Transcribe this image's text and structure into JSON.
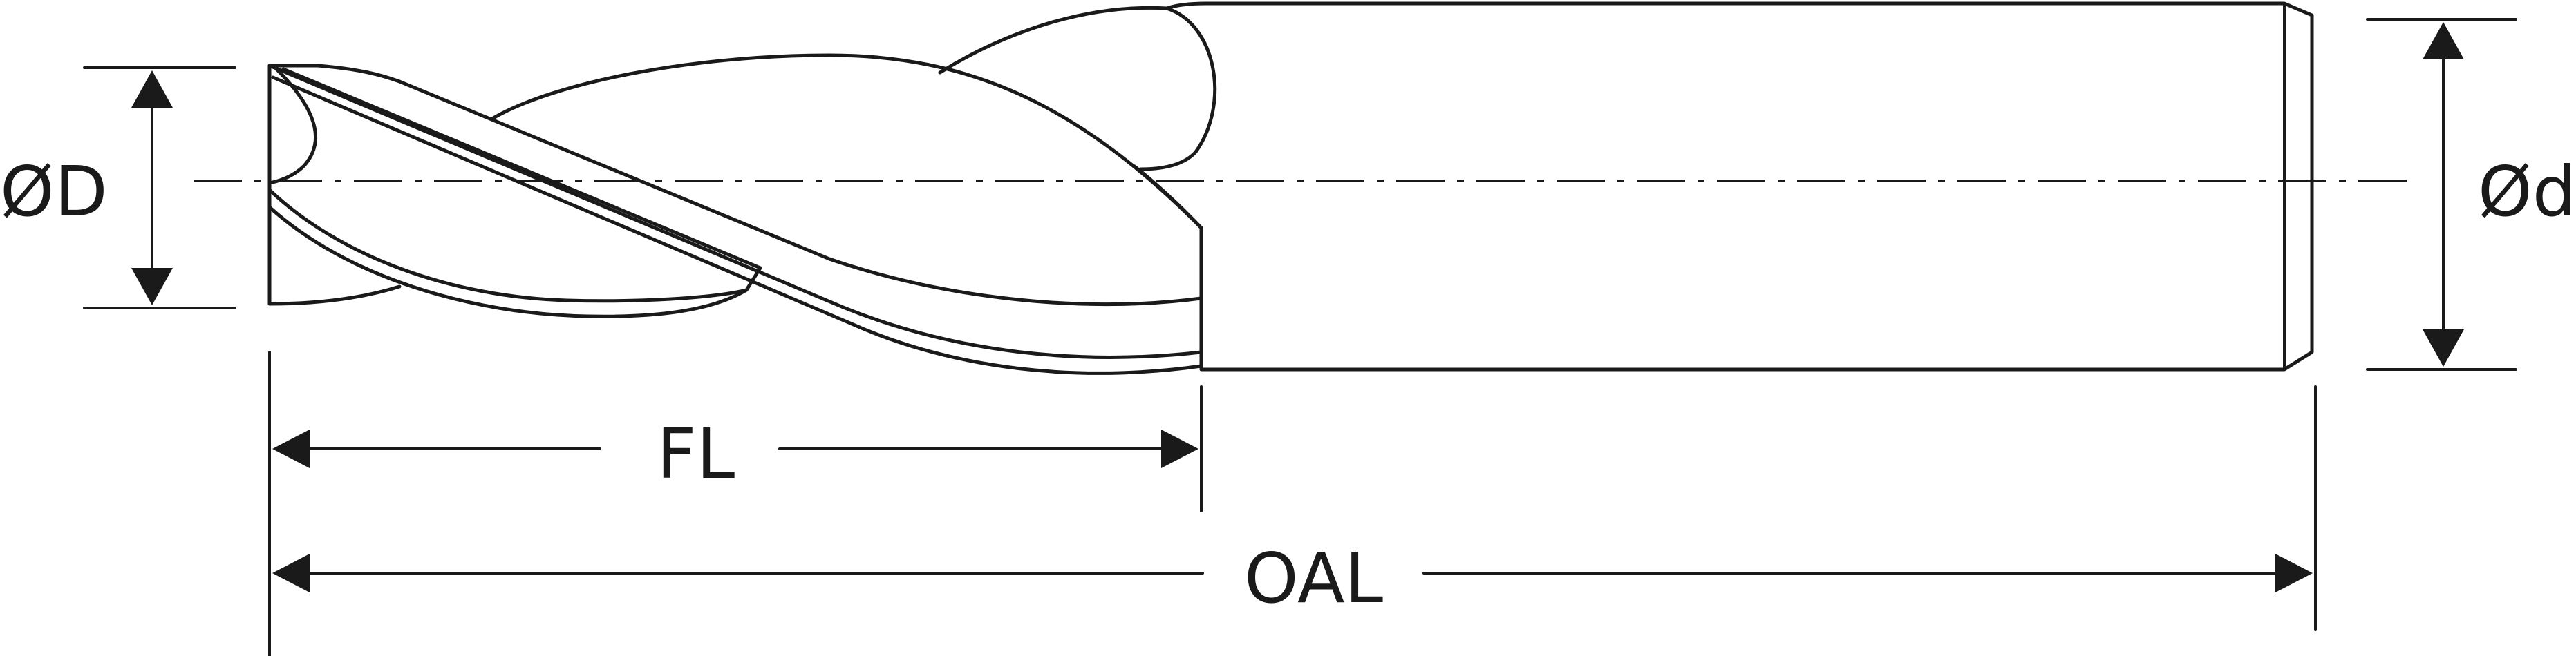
{
  "labels": {
    "cutting_diameter": "ØD",
    "shank_diameter": "Ød",
    "flute_length": "FL",
    "overall_length": "OAL"
  },
  "colors": {
    "line": "#1a1a1a",
    "background": "#ffffff"
  }
}
